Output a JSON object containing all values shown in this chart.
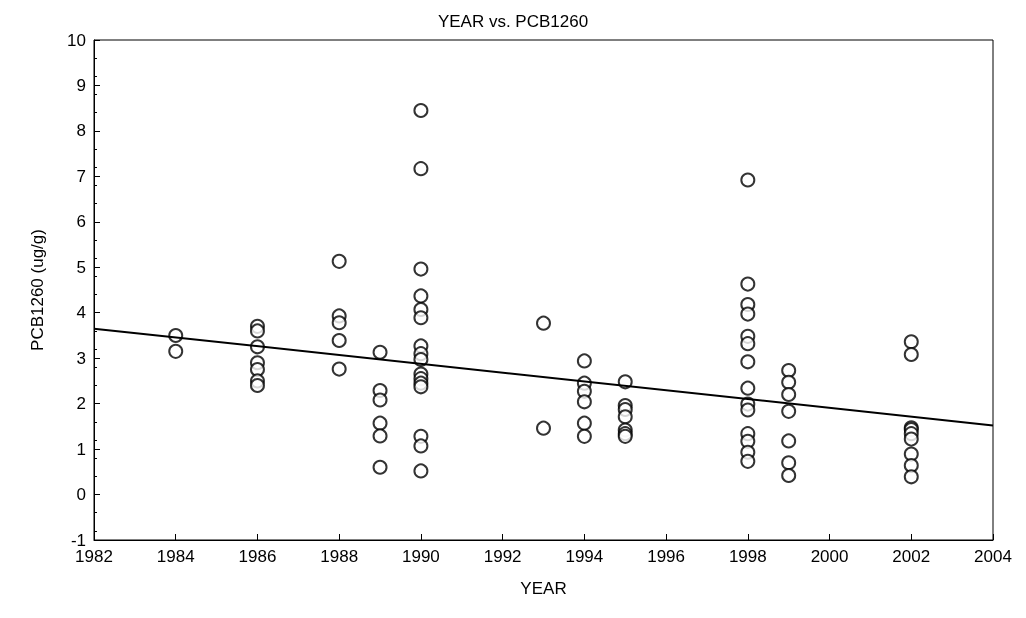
{
  "chart_data": {
    "type": "scatter",
    "title": "YEAR vs. PCB1260",
    "xlabel": "YEAR",
    "ylabel": "PCB1260 (ug/g)",
    "xlim": [
      1982,
      2004
    ],
    "xticks": [
      1982,
      1984,
      1986,
      1988,
      1990,
      1992,
      1994,
      1996,
      1998,
      2000,
      2002,
      2004
    ],
    "ylim": [
      -1,
      10
    ],
    "yticks": [
      -1,
      0,
      1,
      2,
      3,
      4,
      5,
      6,
      7,
      8,
      9,
      10
    ],
    "grid": false,
    "series": [
      {
        "marker": "circle",
        "color": "#000000",
        "x": [
          1984,
          1984,
          1986,
          1986,
          1986,
          1986,
          1986,
          1986,
          1986,
          1988,
          1988,
          1988,
          1988,
          1988,
          1989,
          1989,
          1989,
          1989,
          1989,
          1989,
          1990,
          1990,
          1990,
          1990,
          1990,
          1990,
          1990,
          1990,
          1990,
          1990,
          1990,
          1990,
          1990,
          1990,
          1990,
          1990,
          1993,
          1993,
          1994,
          1994,
          1994,
          1994,
          1994,
          1994,
          1995,
          1995,
          1995,
          1995,
          1995,
          1995,
          1995,
          1998,
          1998,
          1998,
          1998,
          1998,
          1998,
          1998,
          1998,
          1998,
          1998,
          1998,
          1998,
          1998,
          1998,
          1999,
          1999,
          1999,
          1999,
          1999,
          1999,
          1999,
          2002,
          2002,
          2002,
          2002,
          2002,
          2002,
          2002,
          2002,
          2002
        ],
        "values": [
          3.5,
          3.15,
          3.7,
          3.6,
          3.25,
          2.9,
          2.75,
          2.5,
          2.4,
          5.13,
          3.93,
          3.78,
          3.39,
          2.76,
          3.13,
          2.29,
          2.08,
          1.57,
          1.29,
          0.6,
          8.45,
          7.17,
          4.96,
          4.37,
          4.07,
          3.89,
          3.27,
          3.1,
          2.97,
          2.65,
          2.55,
          2.45,
          2.37,
          1.28,
          1.07,
          0.52,
          3.77,
          1.46,
          2.94,
          2.45,
          2.27,
          2.04,
          1.57,
          1.28,
          2.48,
          1.96,
          1.87,
          1.71,
          1.42,
          1.34,
          1.28,
          6.92,
          4.63,
          4.18,
          3.97,
          3.48,
          3.32,
          2.92,
          2.34,
          1.99,
          1.86,
          1.34,
          1.17,
          0.93,
          0.73,
          2.73,
          2.47,
          2.2,
          1.83,
          1.18,
          0.7,
          0.42,
          3.36,
          3.08,
          1.47,
          1.43,
          1.34,
          1.22,
          0.89,
          0.64,
          0.39
        ]
      },
      {
        "type": "line",
        "marker": "none",
        "line_style": "solid",
        "color": "#000000",
        "x": [
          1982,
          2004
        ],
        "values": [
          3.65,
          1.52
        ]
      }
    ]
  }
}
